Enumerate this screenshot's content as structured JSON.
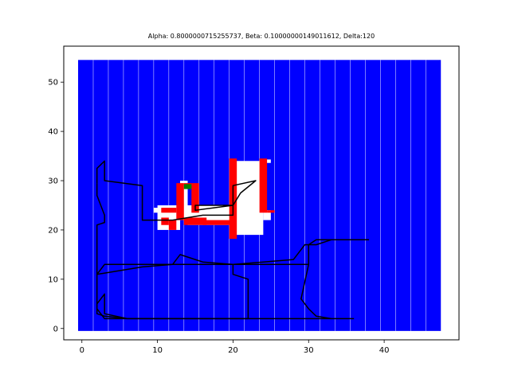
{
  "chart_data": {
    "type": "heatmap",
    "title": "Alpha: 0.8000000715255737, Beta: 0.10000000149011612, Delta:120",
    "xlabel": "",
    "ylabel": "",
    "xlim": [
      -2.4,
      49.9
    ],
    "ylim": [
      -2.3,
      57.3
    ],
    "xticks": [
      0,
      10,
      20,
      30,
      40
    ],
    "yticks": [
      0,
      10,
      20,
      30,
      40,
      50
    ],
    "grid": false,
    "colors": {
      "background": "#0000ff",
      "obstacle": "#ff0000",
      "free": "#ffffff",
      "goal": "#008000",
      "path": "#000000"
    },
    "grid_extent": {
      "x": [
        -0.5,
        47.5
      ],
      "y": [
        -0.5,
        54.5
      ]
    },
    "white_regions": [
      {
        "x": [
          10,
          13
        ],
        "y": [
          20,
          25
        ]
      },
      {
        "x": [
          9.5,
          10.5
        ],
        "y": [
          23.5,
          24.5
        ]
      },
      {
        "x": [
          13,
          15
        ],
        "y": [
          22,
          25
        ]
      },
      {
        "x": [
          13,
          14
        ],
        "y": [
          25,
          30
        ]
      },
      {
        "x": [
          14,
          20
        ],
        "y": [
          21,
          25
        ]
      },
      {
        "x": [
          20,
          24
        ],
        "y": [
          19,
          34
        ]
      },
      {
        "x": [
          24,
          25
        ],
        "y": [
          33.6,
          34.3
        ]
      },
      {
        "x": [
          24,
          25
        ],
        "y": [
          22,
          24
        ]
      }
    ],
    "red_regions": [
      {
        "x": [
          10.5,
          12.5
        ],
        "y": [
          23.5,
          24.5
        ]
      },
      {
        "x": [
          10.5,
          11.5
        ],
        "y": [
          21,
          22.5
        ]
      },
      {
        "x": [
          11.5,
          12.5
        ],
        "y": [
          20,
          22
        ]
      },
      {
        "x": [
          12.5,
          13.5
        ],
        "y": [
          22,
          29.5
        ]
      },
      {
        "x": [
          13.5,
          14.5
        ],
        "y": [
          29,
          29.5
        ]
      },
      {
        "x": [
          14.5,
          15.5
        ],
        "y": [
          23.5,
          29.5
        ]
      },
      {
        "x": [
          13.5,
          16.5
        ],
        "y": [
          21,
          22.5
        ]
      },
      {
        "x": [
          16,
          20
        ],
        "y": [
          21,
          22
        ]
      },
      {
        "x": [
          19.5,
          20.5
        ],
        "y": [
          18.2,
          34.5
        ]
      },
      {
        "x": [
          23.5,
          24.5
        ],
        "y": [
          23.5,
          34.5
        ]
      },
      {
        "x": [
          24.5,
          25.5
        ],
        "y": [
          23.5,
          24
        ]
      }
    ],
    "green_regions": [
      {
        "x": [
          13.5,
          14.5
        ],
        "y": [
          28.3,
          29.3
        ]
      }
    ],
    "paths": [
      [
        [
          2,
          29.5
        ],
        [
          2,
          32.5
        ],
        [
          3,
          34
        ],
        [
          3,
          30
        ],
        [
          8,
          29
        ],
        [
          8,
          22
        ],
        [
          12,
          22
        ],
        [
          14,
          22.5
        ],
        [
          16,
          23
        ],
        [
          20,
          23
        ],
        [
          20,
          29
        ],
        [
          23,
          30
        ],
        [
          21,
          27.5
        ],
        [
          20,
          25
        ],
        [
          15,
          24
        ],
        [
          15,
          25
        ],
        [
          20,
          25
        ]
      ],
      [
        [
          2,
          29.5
        ],
        [
          2,
          27
        ],
        [
          3,
          23
        ],
        [
          3,
          21.5
        ],
        [
          2,
          21
        ],
        [
          2,
          18
        ],
        [
          2,
          11
        ],
        [
          3,
          13
        ],
        [
          10,
          13
        ],
        [
          30,
          13
        ],
        [
          30,
          17
        ],
        [
          31,
          18
        ],
        [
          38,
          18
        ]
      ],
      [
        [
          2,
          11
        ],
        [
          8,
          12.5
        ],
        [
          12,
          13
        ],
        [
          14,
          13
        ],
        [
          18,
          13
        ],
        [
          20,
          13
        ],
        [
          24,
          13.5
        ],
        [
          28,
          14
        ],
        [
          29,
          16
        ],
        [
          29.5,
          17
        ],
        [
          31,
          17
        ],
        [
          33,
          18
        ],
        [
          36,
          18
        ]
      ],
      [
        [
          12,
          13
        ],
        [
          13,
          15
        ],
        [
          15,
          14
        ],
        [
          16,
          13.5
        ],
        [
          20,
          13
        ],
        [
          20,
          11
        ],
        [
          22,
          10
        ],
        [
          22,
          2
        ],
        [
          6,
          2
        ],
        [
          3,
          2.5
        ],
        [
          2,
          3
        ],
        [
          2,
          5
        ],
        [
          3,
          7
        ],
        [
          3,
          3
        ],
        [
          6,
          2
        ]
      ],
      [
        [
          2,
          11
        ],
        [
          2,
          4
        ],
        [
          3,
          2
        ],
        [
          8,
          2
        ],
        [
          20,
          2
        ],
        [
          30,
          2
        ],
        [
          32,
          2
        ],
        [
          36,
          2
        ]
      ],
      [
        [
          30,
          13
        ],
        [
          29,
          6
        ],
        [
          30,
          4
        ],
        [
          31,
          2.5
        ],
        [
          33,
          2
        ]
      ]
    ]
  }
}
